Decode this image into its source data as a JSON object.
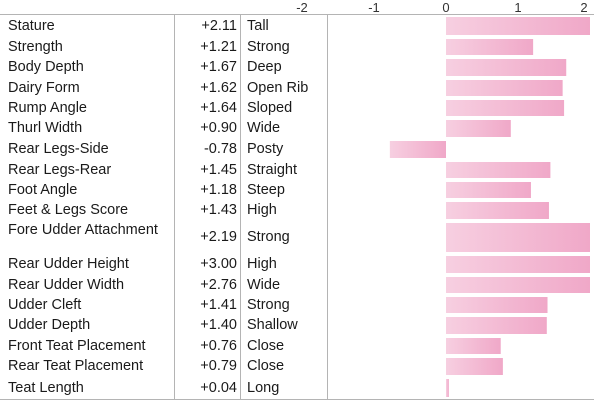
{
  "chart_data": {
    "type": "bar",
    "orientation": "horizontal",
    "xlim": [
      -2,
      2
    ],
    "xticks": [
      "-2",
      "-1",
      "0",
      "1",
      "2"
    ],
    "bar_color": "#f0a8c8",
    "grid": false,
    "rows": [
      {
        "trait": "Stature",
        "value_label": "+2.11",
        "value": 2.11,
        "descriptor": "Tall"
      },
      {
        "trait": "Strength",
        "value_label": "+1.21",
        "value": 1.21,
        "descriptor": "Strong"
      },
      {
        "trait": "Body Depth",
        "value_label": "+1.67",
        "value": 1.67,
        "descriptor": "Deep"
      },
      {
        "trait": "Dairy Form",
        "value_label": "+1.62",
        "value": 1.62,
        "descriptor": "Open Rib"
      },
      {
        "trait": "Rump Angle",
        "value_label": "+1.64",
        "value": 1.64,
        "descriptor": "Sloped"
      },
      {
        "trait": "Thurl Width",
        "value_label": "+0.90",
        "value": 0.9,
        "descriptor": "Wide"
      },
      {
        "trait": "Rear Legs-Side",
        "value_label": "-0.78",
        "value": -0.78,
        "descriptor": "Posty"
      },
      {
        "trait": "Rear Legs-Rear",
        "value_label": "+1.45",
        "value": 1.45,
        "descriptor": "Straight"
      },
      {
        "trait": "Foot Angle",
        "value_label": "+1.18",
        "value": 1.18,
        "descriptor": "Steep"
      },
      {
        "trait": "Feet & Legs Score",
        "value_label": "+1.43",
        "value": 1.43,
        "descriptor": "High"
      },
      {
        "trait": "Fore Udder Attachment",
        "value_label": "+2.19",
        "value": 2.19,
        "descriptor": "Strong"
      },
      {
        "trait": "Rear Udder Height",
        "value_label": "+3.00",
        "value": 3.0,
        "descriptor": "High"
      },
      {
        "trait": "Rear Udder Width",
        "value_label": "+2.76",
        "value": 2.76,
        "descriptor": "Wide"
      },
      {
        "trait": "Udder Cleft",
        "value_label": "+1.41",
        "value": 1.41,
        "descriptor": "Strong"
      },
      {
        "trait": "Udder Depth",
        "value_label": "+1.40",
        "value": 1.4,
        "descriptor": "Shallow"
      },
      {
        "trait": "Front Teat Placement",
        "value_label": "+0.76",
        "value": 0.76,
        "descriptor": "Close"
      },
      {
        "trait": "Rear Teat Placement",
        "value_label": "+0.79",
        "value": 0.79,
        "descriptor": "Close"
      },
      {
        "trait": "Teat Length",
        "value_label": "+0.04",
        "value": 0.04,
        "descriptor": "Long"
      }
    ]
  }
}
